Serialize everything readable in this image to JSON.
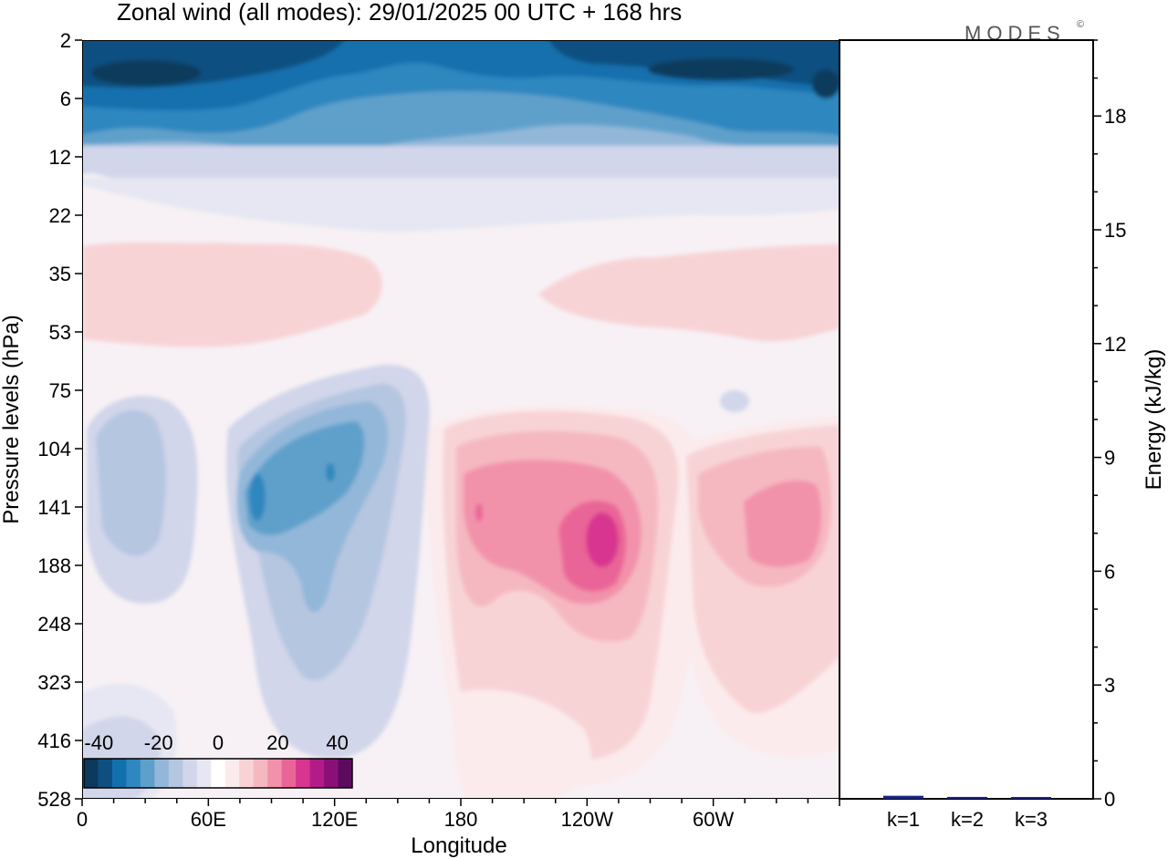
{
  "title": "Zonal wind (all modes):  29/01/2025  00 UTC  + 168 hrs",
  "logo": "MODES",
  "logo_mark": "©",
  "colors": {
    "background": "#ffffff",
    "frame": "#000000",
    "energy_bar": "#1a237e"
  },
  "chart_data": [
    {
      "type": "heatmap",
      "title": "Zonal wind (all modes):  29/01/2025  00 UTC  + 168 hrs",
      "xlabel": "Longitude",
      "ylabel": "Pressure levels (hPa)",
      "x_ticks": [
        "0",
        "60E",
        "120E",
        "180",
        "120W",
        "60W"
      ],
      "x_tick_values": [
        0,
        60,
        120,
        180,
        240,
        300
      ],
      "xlim": [
        0,
        360
      ],
      "y_ticks": [
        "2",
        "6",
        "12",
        "22",
        "35",
        "53",
        "75",
        "104",
        "141",
        "188",
        "248",
        "323",
        "416",
        "528"
      ],
      "y_axis": "pressure (hPa), top = 2, bottom = 528",
      "colorbar": {
        "tick_labels": [
          "-40",
          "-20",
          "0",
          "20",
          "40"
        ],
        "tick_values": [
          -40,
          -20,
          0,
          20,
          40
        ],
        "levels": [
          -45,
          -40,
          -35,
          -30,
          -25,
          -20,
          -15,
          -10,
          -5,
          0,
          5,
          10,
          15,
          20,
          25,
          30,
          35,
          40,
          45
        ],
        "colors": [
          "#0b3a5c",
          "#0d5080",
          "#1270ad",
          "#2f87bf",
          "#5ea0cb",
          "#92b7d9",
          "#b5c6e1",
          "#d1d6ea",
          "#e6e7f2",
          "#ffffff",
          "#fbebec",
          "#f8d3d5",
          "#f5b8c1",
          "#f292aa",
          "#ea6597",
          "#d83590",
          "#b31b88",
          "#8a1078",
          "#5c0a5e"
        ],
        "placement": "bottom-left inside plot"
      },
      "features": [
        {
          "region": "top layers 2-12 hPa, all longitudes",
          "value": -35
        },
        {
          "region": "near 2-4 hPa, 0-40E and 200-300W",
          "value": -45
        },
        {
          "region": "35-53 hPa band",
          "value": 8
        },
        {
          "region": "75-330 hPa, 30-160E",
          "value": -15
        },
        {
          "region": "104-188 hPa, 60-110E core",
          "value": -28
        },
        {
          "region": "104-330 hPa, 175-250",
          "value": 15
        },
        {
          "region": "141-188 hPa, near 120W core",
          "value": 32
        },
        {
          "region": "104-250 hPa, 280-360 core",
          "value": 22
        }
      ]
    },
    {
      "type": "bar",
      "title": "",
      "categories": [
        "k=1",
        "k=2",
        "k=3"
      ],
      "values": [
        0.08,
        0.05,
        0.03
      ],
      "ylabel": "Energy (kJ/kg)",
      "y_ticks": [
        "0",
        "3",
        "6",
        "9",
        "12",
        "15",
        "18"
      ],
      "y_tick_values": [
        0,
        3,
        6,
        9,
        12,
        15,
        18
      ],
      "ylim": [
        0,
        20
      ],
      "axis_side": "right"
    }
  ]
}
